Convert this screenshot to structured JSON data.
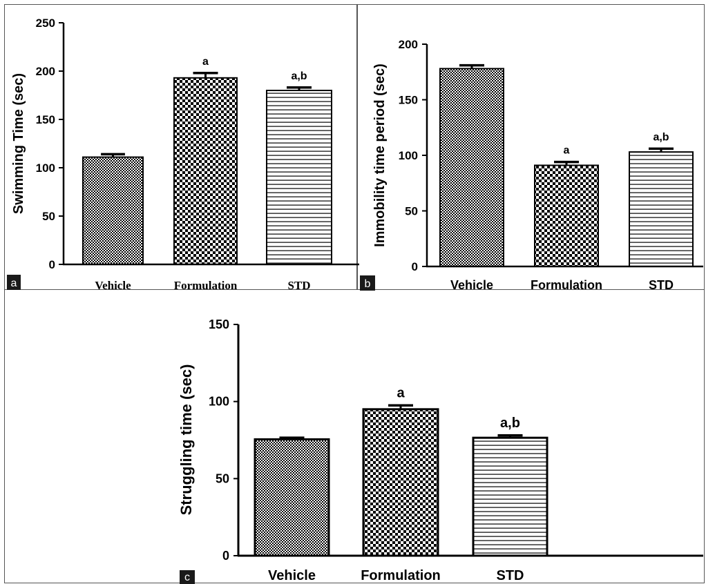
{
  "figure": {
    "panels": [
      {
        "id": "a",
        "panel_label": "a"
      },
      {
        "id": "b",
        "panel_label": "b"
      },
      {
        "id": "c",
        "panel_label": "c"
      }
    ]
  },
  "chart_data": [
    {
      "type": "bar",
      "panel": "a",
      "title": "",
      "xlabel": "",
      "ylabel": "Swimming Time (sec)",
      "categories": [
        "Vehicle",
        "Formulation",
        "STD"
      ],
      "values": [
        111,
        193,
        180
      ],
      "error": [
        3,
        5,
        3
      ],
      "annotations": [
        "",
        "a",
        "a,b"
      ],
      "patterns": [
        "fine-check",
        "coarse-check",
        "horizontal-stripes"
      ],
      "ylim": [
        0,
        250
      ],
      "yticks": [
        0,
        50,
        100,
        150,
        200,
        250
      ],
      "grid": false,
      "legend": "none"
    },
    {
      "type": "bar",
      "panel": "b",
      "title": "",
      "xlabel": "",
      "ylabel": "Immobility time period (sec)",
      "categories": [
        "Vehicle",
        "Formulation",
        "STD"
      ],
      "values": [
        178,
        91,
        103
      ],
      "error": [
        3,
        3,
        3
      ],
      "annotations": [
        "",
        "a",
        "a,b"
      ],
      "patterns": [
        "fine-check",
        "coarse-check",
        "horizontal-stripes"
      ],
      "ylim": [
        0,
        200
      ],
      "yticks": [
        0,
        50,
        100,
        150,
        200
      ],
      "grid": false,
      "legend": "none"
    },
    {
      "type": "bar",
      "panel": "c",
      "title": "",
      "xlabel": "",
      "ylabel": "Struggling time (sec)",
      "categories": [
        "Vehicle",
        "Formulation",
        "STD"
      ],
      "values": [
        75.5,
        95,
        76.5
      ],
      "error": [
        1,
        2.5,
        1.5
      ],
      "annotations": [
        "",
        "a",
        "a,b"
      ],
      "patterns": [
        "fine-check",
        "coarse-check",
        "horizontal-stripes"
      ],
      "ylim": [
        0,
        150
      ],
      "yticks": [
        0,
        50,
        100,
        150
      ],
      "grid": false,
      "legend": "none"
    }
  ],
  "colors": {
    "ink": "#000000",
    "background": "#ffffff",
    "label_box": "#1a1a1a",
    "label_text": "#ffffff"
  }
}
